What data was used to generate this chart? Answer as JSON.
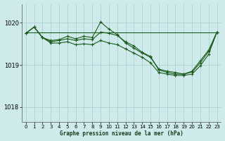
{
  "title": "Graphe pression niveau de la mer (hPa)",
  "background_color": "#ceeaea",
  "grid_color": "#aed0d0",
  "line_color": "#1a5c1a",
  "xlim": [
    -0.5,
    23.5
  ],
  "ylim": [
    1017.65,
    1020.45
  ],
  "yticks": [
    1018,
    1019,
    1020
  ],
  "xticks": [
    0,
    1,
    2,
    3,
    4,
    5,
    6,
    7,
    8,
    9,
    10,
    11,
    12,
    13,
    14,
    15,
    16,
    17,
    18,
    19,
    20,
    21,
    22,
    23
  ],
  "series": [
    {
      "x": [
        0,
        1,
        2,
        3,
        4,
        5,
        6,
        7,
        8,
        9,
        10,
        11,
        12,
        13,
        14,
        15,
        16,
        17,
        18,
        19,
        20,
        21,
        22,
        23
      ],
      "y": [
        1019.78,
        1019.78,
        1019.78,
        1019.78,
        1019.78,
        1019.78,
        1019.78,
        1019.78,
        1019.78,
        1019.78,
        1019.78,
        1019.78,
        1019.78,
        1019.78,
        1019.78,
        1019.78,
        1019.78,
        1019.78,
        1019.78,
        1019.78,
        1019.78,
        1019.78,
        1019.78,
        1019.78
      ],
      "has_markers": false
    },
    {
      "x": [
        0,
        1,
        2,
        3,
        4,
        5,
        6,
        7,
        8,
        9,
        10,
        11,
        12,
        13,
        14,
        15,
        16,
        17,
        18,
        19,
        20,
        21,
        22,
        23
      ],
      "y": [
        1019.75,
        1019.9,
        1019.65,
        1019.58,
        1019.6,
        1019.68,
        1019.62,
        1019.68,
        1019.65,
        1020.02,
        1019.85,
        1019.72,
        1019.52,
        1019.4,
        1019.28,
        1019.18,
        1018.9,
        1018.85,
        1018.82,
        1018.78,
        1018.85,
        1019.1,
        1019.35,
        1019.78
      ],
      "has_markers": true
    },
    {
      "x": [
        0,
        1,
        2,
        3,
        4,
        5,
        6,
        7,
        8,
        9,
        10,
        11,
        12,
        13,
        14,
        15,
        16,
        17,
        18,
        19,
        20,
        21,
        22,
        23
      ],
      "y": [
        1019.75,
        1019.9,
        1019.65,
        1019.55,
        1019.58,
        1019.62,
        1019.58,
        1019.62,
        1019.6,
        1019.78,
        1019.75,
        1019.7,
        1019.55,
        1019.45,
        1019.3,
        1019.2,
        1018.88,
        1018.82,
        1018.78,
        1018.78,
        1018.83,
        1019.05,
        1019.32,
        1019.78
      ],
      "has_markers": true
    },
    {
      "x": [
        0,
        1,
        2,
        3,
        4,
        5,
        6,
        7,
        8,
        9,
        10,
        11,
        12,
        13,
        14,
        15,
        16,
        17,
        18,
        19,
        20,
        21,
        22,
        23
      ],
      "y": [
        1019.75,
        1019.9,
        1019.65,
        1019.52,
        1019.52,
        1019.55,
        1019.48,
        1019.5,
        1019.48,
        1019.58,
        1019.52,
        1019.48,
        1019.38,
        1019.28,
        1019.18,
        1019.05,
        1018.82,
        1018.78,
        1018.75,
        1018.75,
        1018.78,
        1018.98,
        1019.25,
        1019.78
      ],
      "has_markers": true
    }
  ]
}
